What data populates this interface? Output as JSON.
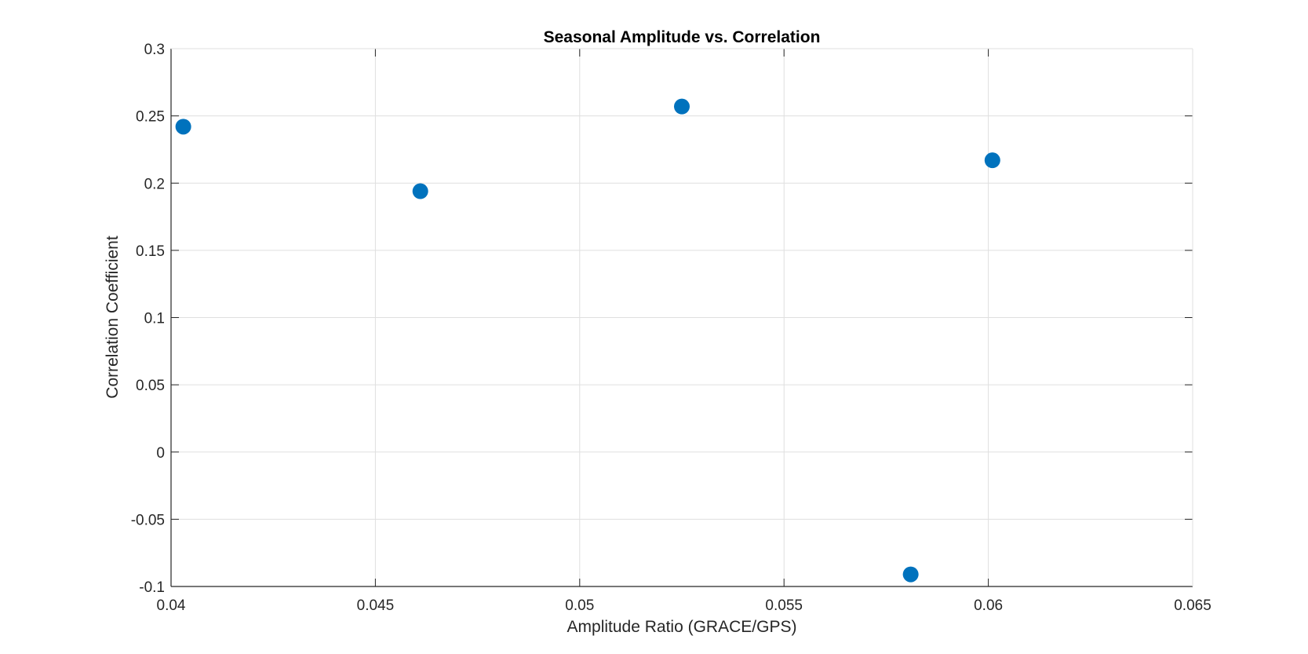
{
  "chart_data": {
    "type": "scatter",
    "title": "Seasonal Amplitude vs. Correlation",
    "xlabel": "Amplitude Ratio (GRACE/GPS)",
    "ylabel": "Correlation Coefficient",
    "xlim": [
      0.04,
      0.065
    ],
    "ylim": [
      -0.1,
      0.3
    ],
    "x_ticks": [
      0.04,
      0.045,
      0.05,
      0.055,
      0.06,
      0.065
    ],
    "x_tick_labels": [
      "0.04",
      "0.045",
      "0.05",
      "0.055",
      "0.06",
      "0.065"
    ],
    "y_ticks": [
      -0.1,
      -0.05,
      0,
      0.05,
      0.1,
      0.15,
      0.2,
      0.25,
      0.3
    ],
    "y_tick_labels": [
      "-0.1",
      "-0.05",
      "0",
      "0.05",
      "0.1",
      "0.15",
      "0.2",
      "0.25",
      "0.3"
    ],
    "grid": true,
    "legend": "none",
    "marker_color": "#0072BD",
    "series": [
      {
        "x": [
          0.0403,
          0.0461,
          0.0525,
          0.0581,
          0.0601
        ],
        "y": [
          0.242,
          0.194,
          0.257,
          -0.091,
          0.217
        ]
      }
    ]
  }
}
